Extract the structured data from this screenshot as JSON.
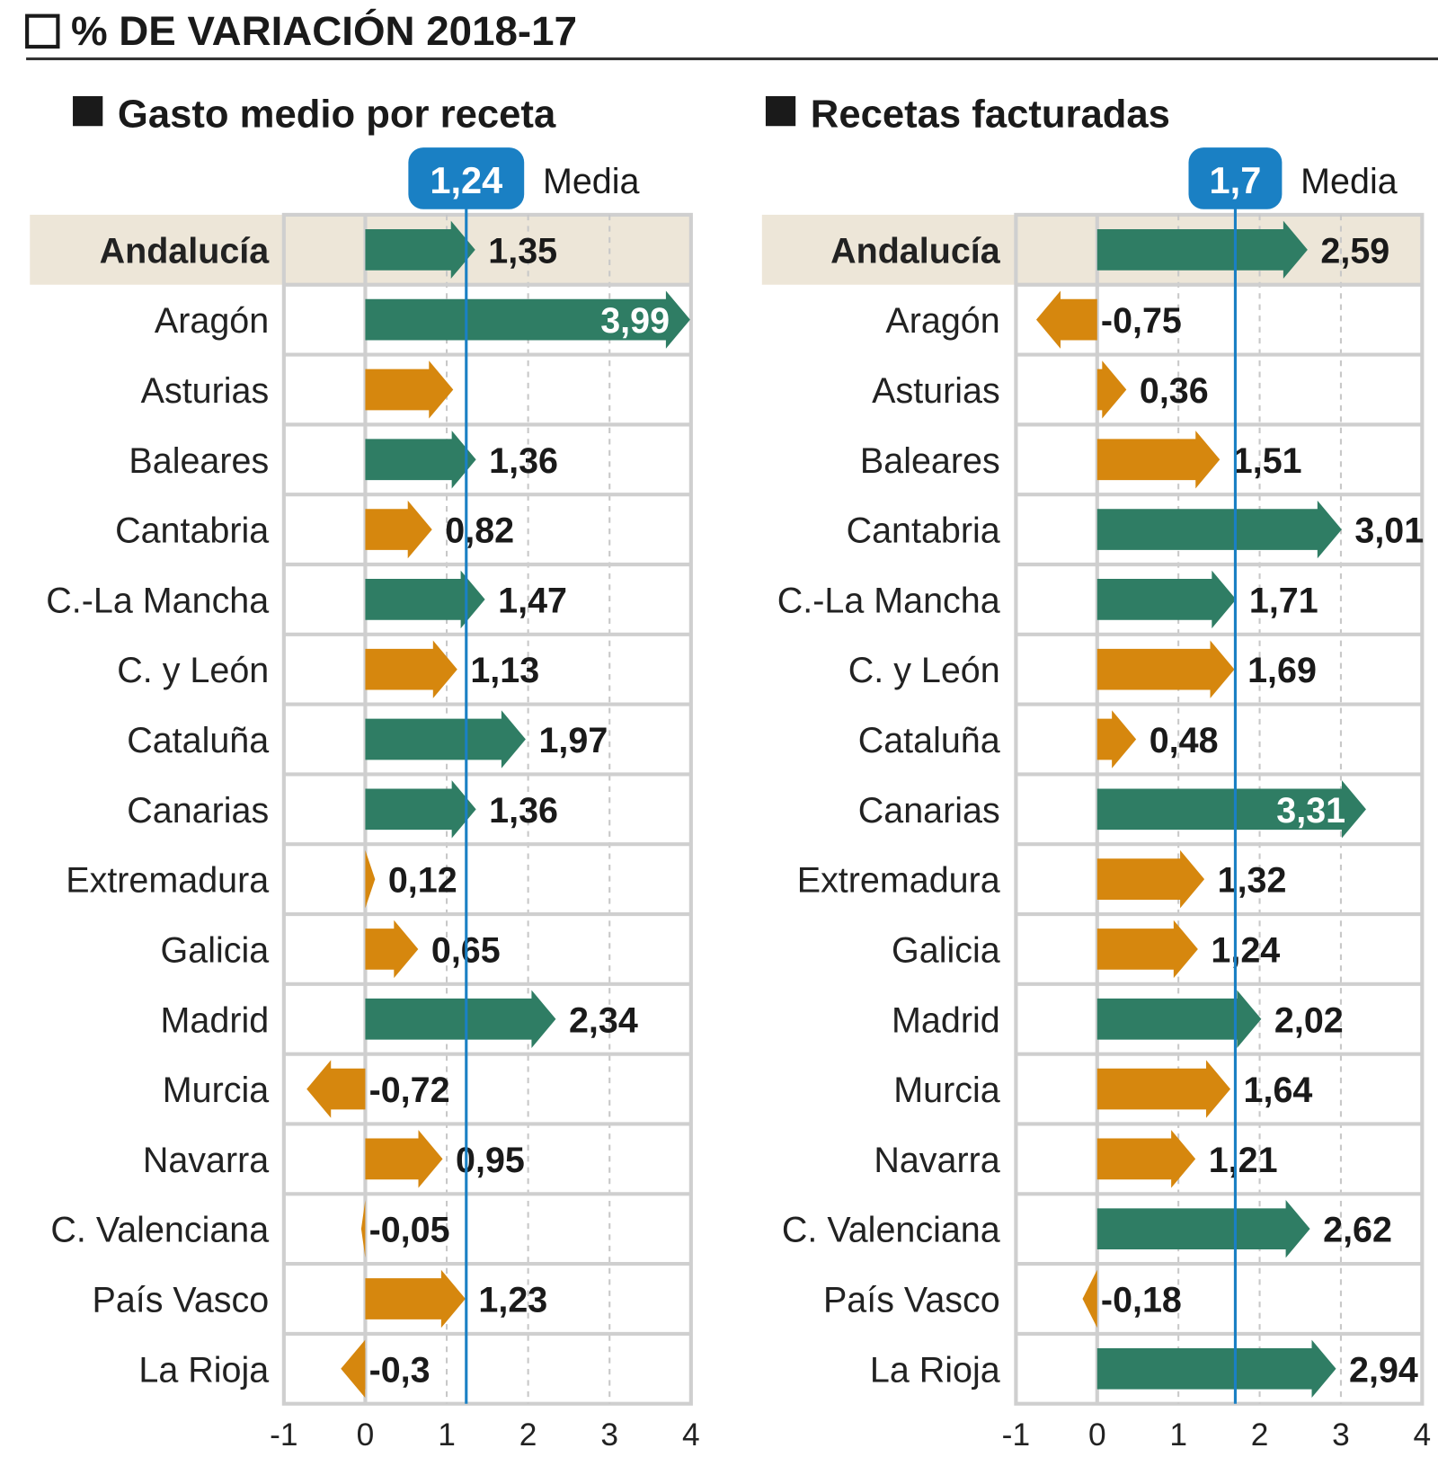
{
  "chart_data": {
    "title": "% DE VARIACIÓN 2018-17",
    "colors": {
      "above_mean": "#2f7d64",
      "below_mean": "#d6870e",
      "mean": "#1a80c4",
      "highlight": "#ede6d8"
    },
    "charts": [
      {
        "type": "bar",
        "orientation": "horizontal",
        "subtitle": "Gasto medio por receta",
        "mean": {
          "value": 1.24,
          "label": "1,24",
          "text": "Media"
        },
        "xlim": [
          -1,
          4
        ],
        "ticks": [
          "-1",
          "0",
          "1",
          "2",
          "3",
          "4"
        ],
        "highlight": "Andalucía",
        "categories": [
          "Andalucía",
          "Aragón",
          "Asturias",
          "Baleares",
          "Cantabria",
          "C.-La Mancha",
          "C. y León",
          "Cataluña",
          "Canarias",
          "Extremadura",
          "Galicia",
          "Madrid",
          "Murcia",
          "Navarra",
          "C. Valenciana",
          "País Vasco",
          "La Rioja"
        ],
        "values": [
          1.35,
          3.99,
          1.08,
          1.36,
          0.82,
          1.47,
          1.13,
          1.97,
          1.36,
          0.12,
          0.65,
          2.34,
          -0.72,
          0.95,
          -0.05,
          1.23,
          -0.3
        ],
        "labels": [
          "1,35",
          "3,99",
          "",
          "1,36",
          "0,82",
          "1,47",
          "1,13",
          "1,97",
          "1,36",
          "0,12",
          "0,65",
          "2,34",
          "-0,72",
          "0,95",
          "-0,05",
          "1,23",
          "-0,3"
        ]
      },
      {
        "type": "bar",
        "orientation": "horizontal",
        "subtitle": "Recetas facturadas",
        "mean": {
          "value": 1.7,
          "label": "1,7",
          "text": "Media"
        },
        "xlim": [
          -1,
          4
        ],
        "ticks": [
          "-1",
          "0",
          "1",
          "2",
          "3",
          "4"
        ],
        "highlight": "Andalucía",
        "categories": [
          "Andalucía",
          "Aragón",
          "Asturias",
          "Baleares",
          "Cantabria",
          "C.-La Mancha",
          "C. y León",
          "Cataluña",
          "Canarias",
          "Extremadura",
          "Galicia",
          "Madrid",
          "Murcia",
          "Navarra",
          "C. Valenciana",
          "País Vasco",
          "La Rioja"
        ],
        "values": [
          2.59,
          -0.75,
          0.36,
          1.51,
          3.01,
          1.71,
          1.69,
          0.48,
          3.31,
          1.32,
          1.24,
          2.02,
          1.64,
          1.21,
          2.62,
          -0.18,
          2.94
        ],
        "labels": [
          "2,59",
          "-0,75",
          "0,36",
          "1,51",
          "3,01",
          "1,71",
          "1,69",
          "0,48",
          "3,31",
          "1,32",
          "1,24",
          "2,02",
          "1,64",
          "1,21",
          "2,62",
          "-0,18",
          "2,94"
        ]
      }
    ]
  }
}
